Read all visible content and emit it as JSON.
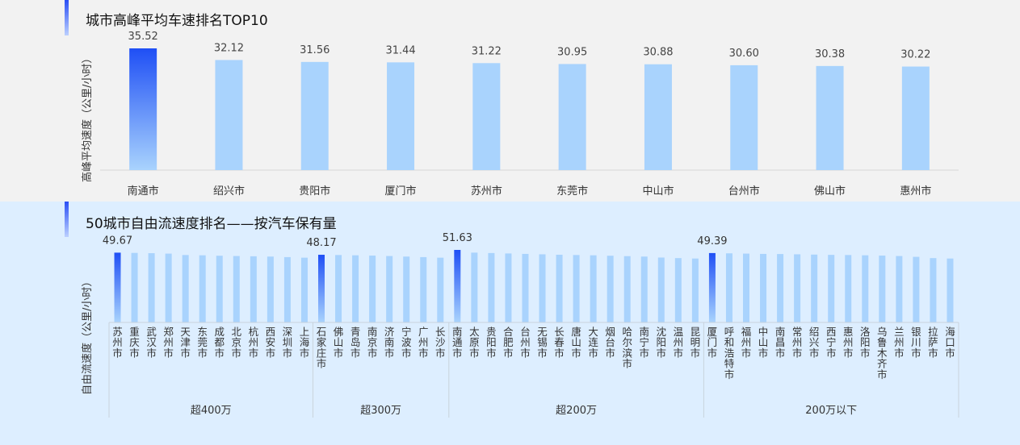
{
  "colors": {
    "top_bg": "#f2f2f2",
    "bottom_bg": "#ddeeff",
    "bar_light": "#a9d3fd",
    "bar_highlight_top": "#1f4ff5",
    "bar_highlight_bottom": "#a9d3fd",
    "accent_top": "#2a4ff5",
    "accent_bottom": "#bcd0ff"
  },
  "top": {
    "title": "城市高峰平均车速排名TOP10",
    "ylabel": "高峰平均速度（公里/小时）"
  },
  "bottom": {
    "title": "50城市自由流速度排名——按汽车保有量",
    "ylabel": "自由流速度（公里/小时）"
  },
  "chart_data": [
    {
      "type": "bar",
      "title": "城市高峰平均车速排名TOP10",
      "ylabel": "高峰平均速度（公里/小时）",
      "categories": [
        "南通市",
        "绍兴市",
        "贵阳市",
        "厦门市",
        "苏州市",
        "东莞市",
        "中山市",
        "台州市",
        "佛山市",
        "惠州市"
      ],
      "values": [
        35.52,
        32.12,
        31.56,
        31.44,
        31.22,
        30.95,
        30.88,
        30.6,
        30.38,
        30.22
      ],
      "highlight_index": 0,
      "ylim": [
        0,
        37
      ]
    },
    {
      "type": "bar",
      "title": "50城市自由流速度排名——按汽车保有量",
      "ylabel": "自由流速度（公里/小时）",
      "ylim": [
        0,
        52
      ],
      "groups": [
        {
          "name": "超400万",
          "categories": [
            "苏州市",
            "重庆市",
            "武汉市",
            "郑州市",
            "天津市",
            "东莞市",
            "成都市",
            "北京市",
            "杭州市",
            "西安市",
            "深圳市",
            "上海市"
          ],
          "values": [
            49.67,
            49.5,
            49.3,
            49.0,
            48.0,
            47.8,
            47.5,
            47.3,
            47.1,
            46.9,
            46.5,
            46.1
          ],
          "labeled_value": "49.67"
        },
        {
          "name": "超300万",
          "categories": [
            "石家庄市",
            "佛山市",
            "青岛市",
            "南京市",
            "济南市",
            "宁波市",
            "广州市",
            "长沙市"
          ],
          "values": [
            48.17,
            48.0,
            47.8,
            47.6,
            47.3,
            46.9,
            46.5,
            46.1
          ],
          "labeled_value": "48.17"
        },
        {
          "name": "超200万",
          "categories": [
            "南通市",
            "太原市",
            "贵阳市",
            "合肥市",
            "台州市",
            "无锡市",
            "长春市",
            "唐山市",
            "大连市",
            "烟台市",
            "哈尔滨市",
            "南宁市",
            "沈阳市",
            "温州市",
            "昆明市"
          ],
          "values": [
            51.63,
            49.7,
            49.4,
            49.1,
            48.8,
            48.5,
            48.2,
            48.0,
            47.8,
            47.5,
            47.2,
            46.9,
            46.2,
            45.8,
            45.5
          ],
          "labeled_value": "51.63"
        },
        {
          "name": "200万以下",
          "categories": [
            "厦门市",
            "呼和浩特市",
            "福州市",
            "中山市",
            "南昌市",
            "常州市",
            "绍兴市",
            "西宁市",
            "惠州市",
            "洛阳市",
            "乌鲁木齐市",
            "兰州市",
            "银川市",
            "拉萨市",
            "海口市"
          ],
          "values": [
            49.39,
            49.2,
            49.0,
            48.8,
            48.7,
            48.5,
            48.3,
            48.1,
            48.0,
            47.8,
            47.6,
            47.3,
            46.7,
            45.8,
            45.5
          ],
          "labeled_value": "49.39"
        }
      ]
    }
  ]
}
